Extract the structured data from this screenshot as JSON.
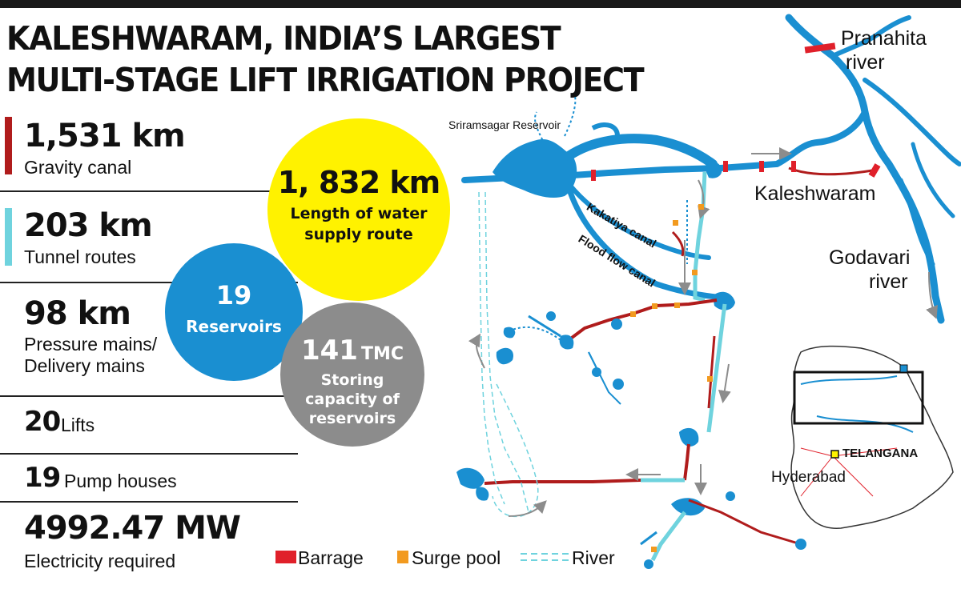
{
  "title": {
    "line1": "KALESHWARAM, INDIA’S LARGEST",
    "line2": "MULTI-STAGE LIFT IRRIGATION PROJECT"
  },
  "stats": [
    {
      "big": "1,531 km",
      "small": "Gravity canal",
      "bar_color": "#b01c1c"
    },
    {
      "big": "203 km",
      "small": "Tunnel routes",
      "bar_color": "#6fd3de"
    },
    {
      "big": "98 km",
      "small": "Pressure mains/",
      "small2": "Delivery mains"
    },
    {
      "big": "20",
      "small": "Lifts"
    },
    {
      "big": "19",
      "small": "Pump houses"
    },
    {
      "big": "4992.47 MW",
      "small": "Electricity required"
    }
  ],
  "circles": {
    "length": {
      "value": "1, 832 km",
      "line1": "Length of water",
      "line2": "supply route",
      "color": "#fff200"
    },
    "reservoirs": {
      "value": "19",
      "label": "Reservoirs",
      "color": "#1a8fd1"
    },
    "capacity": {
      "value": "141",
      "unit": "TMC",
      "line1": "Storing",
      "line2": "capacity of",
      "line3": "reservoirs",
      "color": "#8c8c8c"
    }
  },
  "map_labels": {
    "sriramsagar": "Sriramsagar Reservoir",
    "kakatiya": "Kakatiya canal",
    "flood_flow": "Flood flow canal",
    "kaleshwaram": "Kaleshwaram",
    "pranahita1": "Pranahita",
    "pranahita2": "river",
    "godavari1": "Godavari",
    "godavari2": "river",
    "telangana": "TELANGANA",
    "hyderabad": "Hyderabad"
  },
  "legend": {
    "barrage": "Barrage",
    "surge_pool": "Surge pool",
    "river": "River"
  },
  "colors": {
    "river_blue": "#1a8fd1",
    "canal_red": "#b01c1c",
    "tunnel_cyan": "#6fd3de",
    "barrage_red": "#e0202a",
    "surge_orange": "#f29a1f",
    "arrow_gray": "#8c8c8c"
  }
}
